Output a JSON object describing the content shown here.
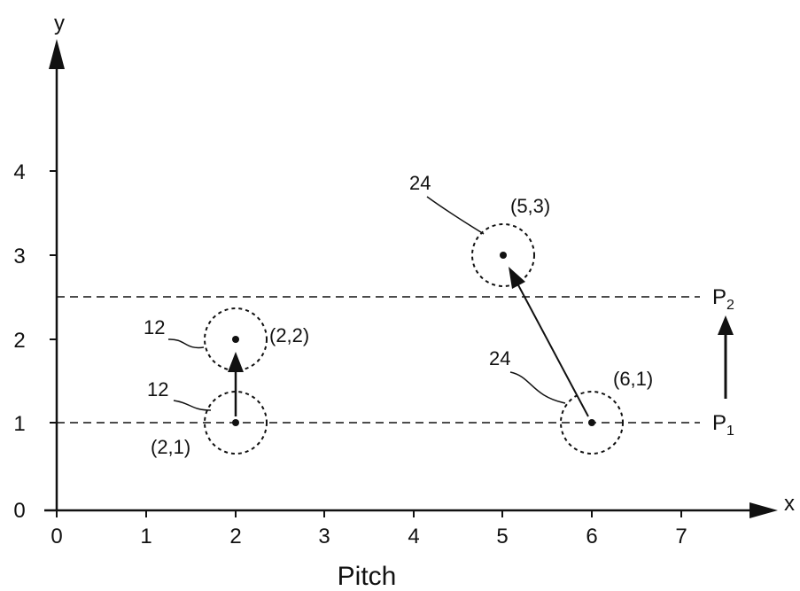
{
  "axes": {
    "x_letter": "x",
    "y_letter": "y",
    "x_title": "Pitch",
    "x_ticks": [
      "0",
      "1",
      "2",
      "3",
      "4",
      "5",
      "6",
      "7"
    ],
    "y_ticks": [
      "0",
      "1",
      "2",
      "3",
      "4"
    ],
    "xlim": [
      0,
      7.9
    ],
    "ylim": [
      0,
      5.3
    ]
  },
  "planes": [
    {
      "name": "P",
      "subscript": "1",
      "y": 1
    },
    {
      "name": "P",
      "subscript": "2",
      "y": 2.5
    }
  ],
  "elements": [
    {
      "ref": "12",
      "coord_label": "(2,1)",
      "x": 2,
      "y": 1
    },
    {
      "ref": "12",
      "coord_label": "(2,2)",
      "x": 2,
      "y": 2
    },
    {
      "ref": "24",
      "coord_label": "(6,1)",
      "x": 6,
      "y": 1
    },
    {
      "ref": "24",
      "coord_label": "(5,3)",
      "x": 5,
      "y": 3
    }
  ],
  "moves": [
    {
      "from": [
        2,
        1
      ],
      "to": [
        2,
        2
      ]
    },
    {
      "from": [
        6,
        1
      ],
      "to": [
        5,
        3
      ]
    }
  ],
  "colors": {
    "ink": "#111111",
    "background": "#ffffff"
  }
}
